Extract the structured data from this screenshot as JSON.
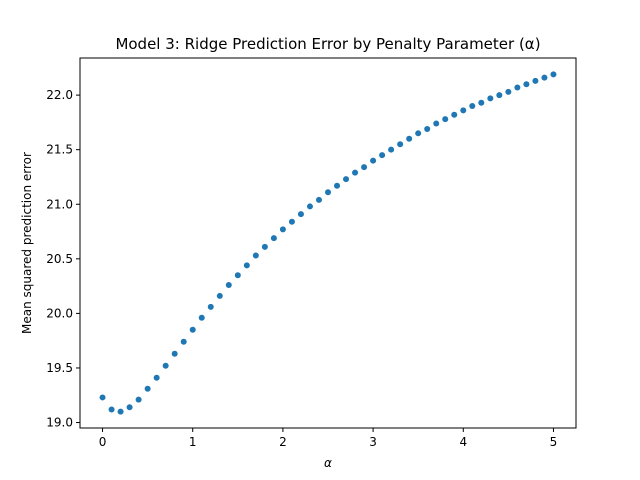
{
  "chart_data": {
    "type": "scatter",
    "title": "Model 3: Ridge Prediction Error by Penalty Parameter (α)",
    "xlabel": "α",
    "ylabel": "Mean squared prediction error",
    "xlim": [
      -0.25,
      5.25
    ],
    "ylim": [
      18.95,
      22.34
    ],
    "xticks": [
      0,
      1,
      2,
      3,
      4,
      5
    ],
    "yticks": [
      19.0,
      19.5,
      20.0,
      20.5,
      21.0,
      21.5,
      22.0
    ],
    "grid": false,
    "color": "#1f77b4",
    "series": [
      {
        "x": [
          0.0,
          0.1,
          0.2,
          0.3,
          0.4,
          0.5,
          0.6,
          0.7,
          0.8,
          0.9,
          1.0,
          1.1,
          1.2,
          1.3,
          1.4,
          1.5,
          1.6,
          1.7,
          1.8,
          1.9,
          2.0,
          2.1,
          2.2,
          2.3,
          2.4,
          2.5,
          2.6,
          2.7,
          2.8,
          2.9,
          3.0,
          3.1,
          3.2,
          3.3,
          3.4,
          3.5,
          3.6,
          3.7,
          3.8,
          3.9,
          4.0,
          4.1,
          4.2,
          4.3,
          4.4,
          4.5,
          4.6,
          4.7,
          4.8,
          4.9,
          5.0
        ],
        "y": [
          19.23,
          19.12,
          19.1,
          19.14,
          19.21,
          19.31,
          19.41,
          19.52,
          19.63,
          19.74,
          19.85,
          19.96,
          20.06,
          20.16,
          20.26,
          20.35,
          20.44,
          20.53,
          20.61,
          20.69,
          20.77,
          20.84,
          20.91,
          20.98,
          21.04,
          21.11,
          21.17,
          21.23,
          21.29,
          21.34,
          21.4,
          21.45,
          21.5,
          21.55,
          21.6,
          21.65,
          21.69,
          21.74,
          21.78,
          21.82,
          21.86,
          21.9,
          21.93,
          21.97,
          22.0,
          22.03,
          22.07,
          22.1,
          22.13,
          22.16,
          22.19
        ]
      }
    ]
  }
}
